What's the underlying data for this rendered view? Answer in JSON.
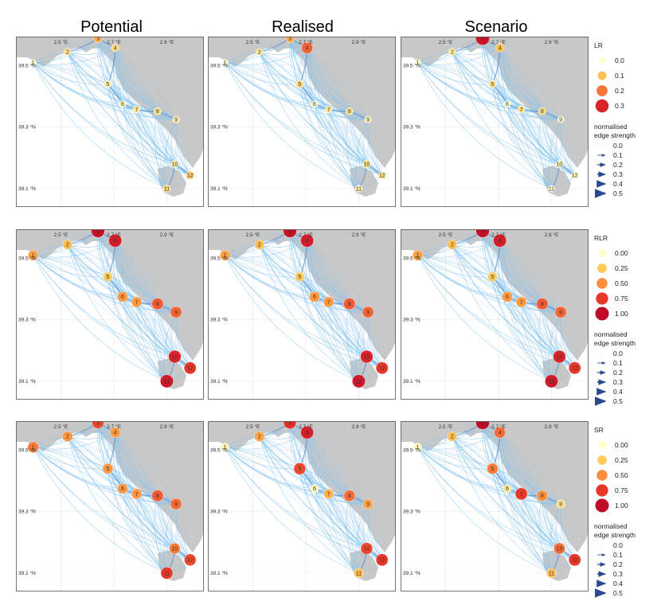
{
  "column_titles": [
    "Potential",
    "Realised",
    "Scenario"
  ],
  "x_ticks": [
    "2.5 °E",
    "2.7 °E",
    "2.9 °E"
  ],
  "y_ticks": [
    "39.5 °N",
    "39.3 °N",
    "39.1 °N"
  ],
  "colors": {
    "edge": "#87c5f0",
    "edge_strong": "#4d7fc4",
    "land": "#c8c8c8",
    "scale": [
      "#ffffcc",
      "#fdca5c",
      "#fd8d3c",
      "#e8372a",
      "#c00b28"
    ]
  },
  "chart_data": {
    "type": "network-map-grid",
    "node_ids": [
      "1",
      "2",
      "3",
      "4",
      "5",
      "6",
      "7",
      "8",
      "9",
      "10",
      "11",
      "12"
    ],
    "rows": [
      {
        "metric": "LR",
        "legend_title": "LR",
        "legend_values": [
          "0.0",
          "0.1",
          "0.2",
          "0.3"
        ],
        "edge_legend_title": [
          "normalised",
          "edge strength"
        ],
        "edge_legend_values": [
          "0.0",
          "0.1",
          "0.2",
          "0.3",
          "0.4",
          "0.5"
        ],
        "panels": [
          {
            "title": "Potential",
            "node_values": [
              0.0,
              0.05,
              0.12,
              0.06,
              0.03,
              0.02,
              0.04,
              0.05,
              0.03,
              0.04,
              0.06,
              0.08
            ]
          },
          {
            "title": "Realised",
            "node_values": [
              0.0,
              0.04,
              0.12,
              0.22,
              0.06,
              0.0,
              0.04,
              0.05,
              0.02,
              0.05,
              0.03,
              0.05
            ]
          },
          {
            "title": "Scenario",
            "node_values": [
              0.0,
              0.04,
              0.33,
              0.1,
              0.05,
              0.0,
              0.05,
              0.06,
              0.0,
              0.02,
              0.0,
              0.02
            ]
          }
        ]
      },
      {
        "metric": "RLR",
        "legend_title": "RLR",
        "legend_values": [
          "0.00",
          "0.25",
          "0.50",
          "0.75",
          "1.00"
        ],
        "edge_legend_title": [
          "normalised",
          "edge strength"
        ],
        "edge_legend_values": [
          "0.0",
          "0.1",
          "0.2",
          "0.3",
          "0.4",
          "0.5"
        ],
        "panels": [
          {
            "title": "Potential",
            "node_values": [
              0.42,
              0.3,
              0.97,
              0.9,
              0.25,
              0.45,
              0.45,
              0.65,
              0.62,
              0.85,
              0.92,
              0.75
            ]
          },
          {
            "title": "Realised",
            "node_values": [
              0.42,
              0.3,
              0.97,
              0.9,
              0.25,
              0.45,
              0.45,
              0.65,
              0.62,
              0.85,
              0.92,
              0.75
            ]
          },
          {
            "title": "Scenario",
            "node_values": [
              0.42,
              0.3,
              0.97,
              0.9,
              0.25,
              0.45,
              0.45,
              0.65,
              0.62,
              0.85,
              0.92,
              0.75
            ]
          }
        ]
      },
      {
        "metric": "SR",
        "legend_title": "SR",
        "legend_values": [
          "0.00",
          "0.25",
          "0.50",
          "0.75",
          "1.00"
        ],
        "edge_legend_title": [
          "normalised",
          "edge strength"
        ],
        "edge_legend_values": [
          "0.0",
          "0.1",
          "0.2",
          "0.3",
          "0.4",
          "0.5"
        ],
        "panels": [
          {
            "title": "Potential",
            "node_values": [
              0.55,
              0.45,
              0.7,
              0.45,
              0.45,
              0.45,
              0.45,
              0.65,
              0.6,
              0.55,
              0.75,
              0.7
            ]
          },
          {
            "title": "Realised",
            "node_values": [
              0.05,
              0.4,
              0.8,
              0.88,
              0.7,
              0.05,
              0.35,
              0.6,
              0.4,
              0.7,
              0.3,
              0.75
            ]
          },
          {
            "title": "Scenario",
            "node_values": [
              0.03,
              0.3,
              1.0,
              0.6,
              0.55,
              0.1,
              0.75,
              0.5,
              0.15,
              0.6,
              0.3,
              0.75
            ]
          }
        ]
      }
    ]
  }
}
